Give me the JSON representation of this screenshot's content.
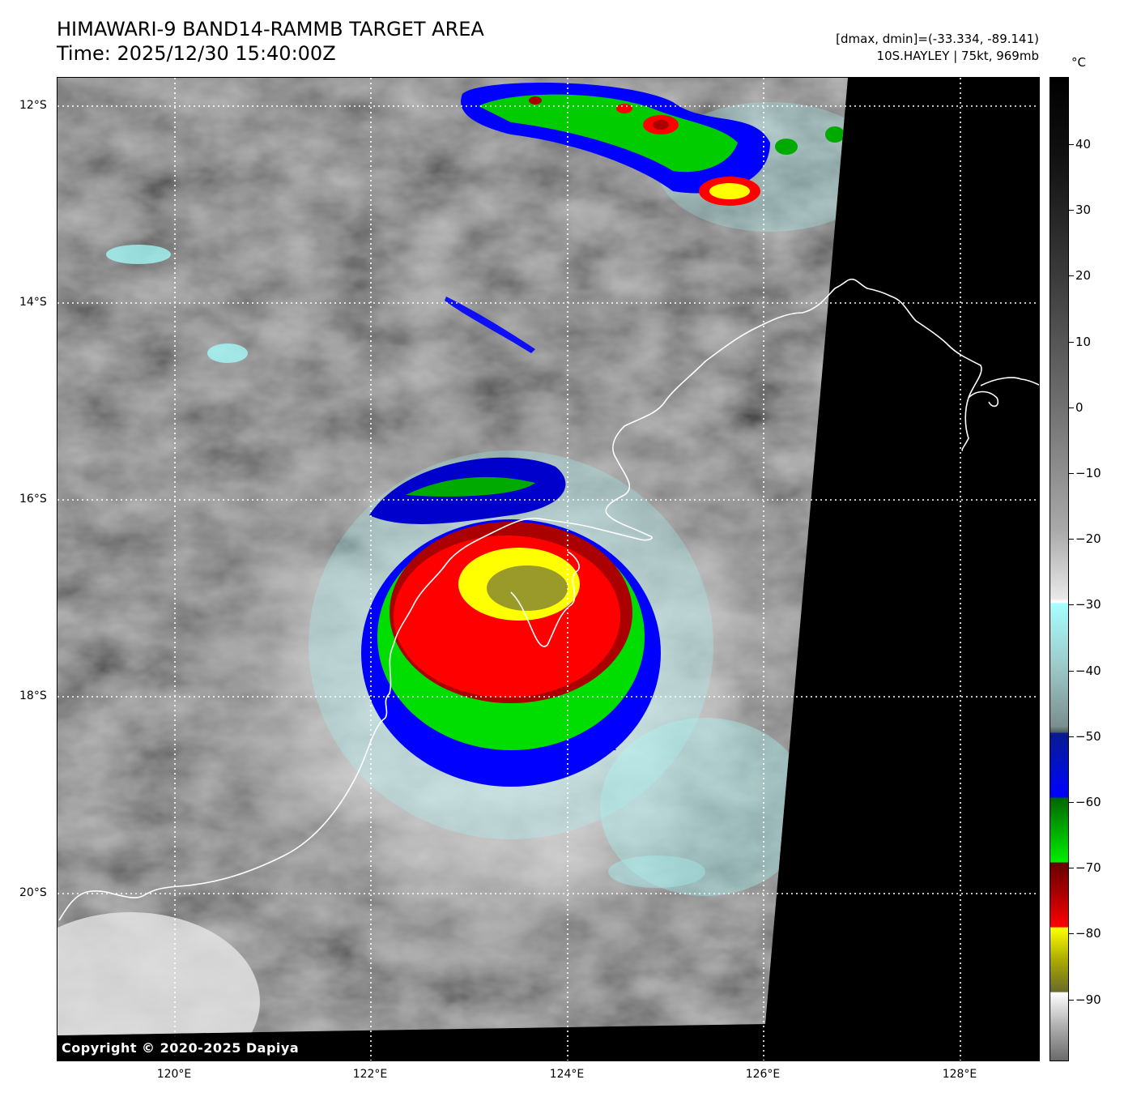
{
  "header": {
    "title_line1": "HIMAWARI-9 BAND14-RAMMB TARGET AREA",
    "title_line2": "Time: 2025/12/30 15:40:00Z",
    "info_line1": "[dmax, dmin]=(-33.334, -89.141)",
    "info_line2": "10S.HAYLEY | 75kt, 969mb"
  },
  "map": {
    "copyright": "Copyright © 2020-2025 Dapiya",
    "lat_labels": [
      "12°S",
      "14°S",
      "16°S",
      "18°S",
      "20°S"
    ],
    "lon_labels": [
      "120°E",
      "122°E",
      "124°E",
      "126°E",
      "128°E"
    ]
  },
  "colorbar": {
    "unit": "°C",
    "tick_labels": [
      "40",
      "30",
      "20",
      "10",
      "0",
      "−10",
      "−20",
      "−30",
      "−40",
      "−50",
      "−60",
      "−70",
      "−80",
      "−90"
    ],
    "colors": {
      "cyan": "#a6ffff",
      "blue": "#0000ff",
      "green": "#00ee00",
      "red": "#ff0000",
      "yellow": "#ffff00"
    }
  }
}
